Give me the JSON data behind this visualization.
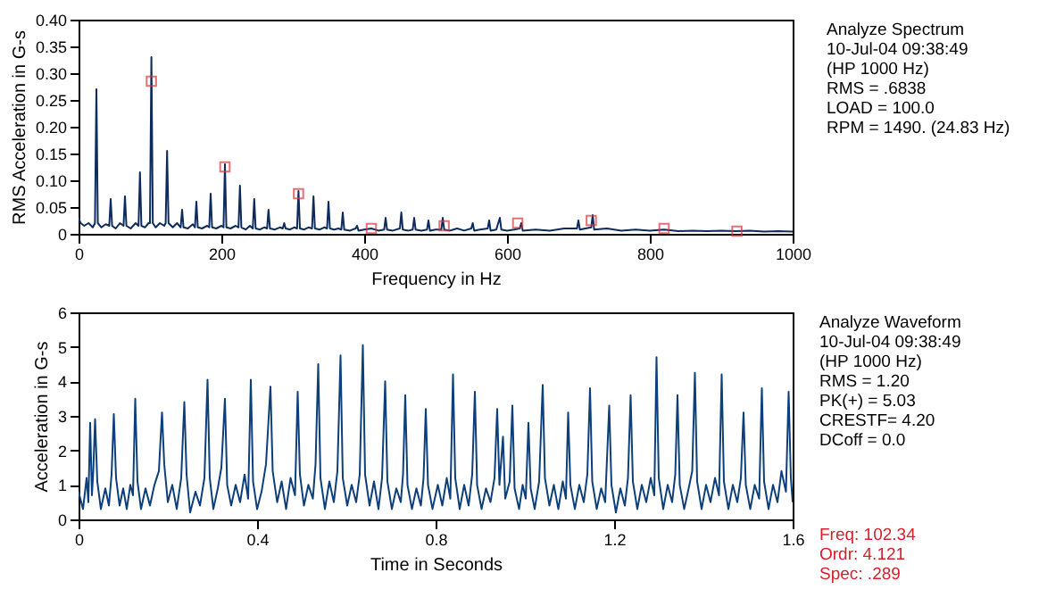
{
  "chart_data": [
    {
      "type": "line",
      "xlabel": "Frequency in Hz",
      "ylabel": "RMS Acceleration in G-s",
      "xlim": [
        0,
        1000
      ],
      "xticks": [
        0,
        200,
        400,
        600,
        800,
        1000
      ],
      "ylim": [
        0,
        0.4
      ],
      "yticks": [
        0,
        0.05,
        {
          "value": 0.1,
          "label": "0.10"
        },
        0.15,
        {
          "value": 0.2,
          "label": "0.20"
        },
        0.25,
        {
          "value": 0.3,
          "label": "0.30"
        },
        0.35,
        {
          "value": 0.4,
          "label": "0.40"
        }
      ],
      "grid": false,
      "series": [
        {
          "color": "#0d2b5c",
          "x": [
            0,
            3,
            8,
            14,
            20,
            23,
            25,
            27,
            32,
            38,
            43,
            45,
            47,
            52,
            58,
            63,
            65,
            67,
            73,
            80,
            84,
            86,
            88,
            93,
            98,
            100,
            102,
            104,
            108,
            114,
            120,
            122,
            124,
            126,
            132,
            138,
            143,
            145,
            147,
            153,
            160,
            163,
            165,
            167,
            173,
            180,
            183,
            185,
            187,
            193,
            200,
            203,
            205,
            207,
            213,
            220,
            224,
            226,
            228,
            234,
            240,
            244,
            246,
            248,
            254,
            260,
            264,
            266,
            268,
            275,
            282,
            286,
            288,
            290,
            296,
            302,
            306,
            308,
            310,
            316,
            322,
            327,
            329,
            331,
            338,
            344,
            348,
            350,
            352,
            358,
            364,
            368,
            370,
            372,
            380,
            388,
            390,
            392,
            400,
            410,
            420,
            428,
            430,
            432,
            440,
            450,
            452,
            454,
            462,
            468,
            470,
            472,
            480,
            488,
            490,
            492,
            500,
            508,
            510,
            512,
            520,
            530,
            540,
            550,
            552,
            554,
            562,
            573,
            575,
            577,
            585,
            590,
            592,
            600,
            610,
            618,
            620,
            622,
            640,
            660,
            680,
            698,
            700,
            702,
            710,
            718,
            720,
            722,
            740,
            760,
            780,
            800,
            820,
            840,
            860,
            880,
            900,
            920,
            940,
            960,
            980,
            1000
          ],
          "values": [
            0.03,
            0.02,
            0.015,
            0.02,
            0.012,
            0.02,
            0.27,
            0.02,
            0.012,
            0.018,
            0.015,
            0.065,
            0.015,
            0.01,
            0.02,
            0.015,
            0.07,
            0.015,
            0.01,
            0.02,
            0.015,
            0.115,
            0.015,
            0.012,
            0.02,
            0.02,
            0.33,
            0.02,
            0.012,
            0.02,
            0.015,
            0.02,
            0.155,
            0.02,
            0.012,
            0.02,
            0.012,
            0.045,
            0.012,
            0.01,
            0.018,
            0.012,
            0.06,
            0.012,
            0.01,
            0.015,
            0.012,
            0.075,
            0.012,
            0.01,
            0.015,
            0.012,
            0.13,
            0.012,
            0.01,
            0.015,
            0.012,
            0.09,
            0.012,
            0.008,
            0.015,
            0.01,
            0.065,
            0.01,
            0.008,
            0.012,
            0.01,
            0.045,
            0.01,
            0.008,
            0.012,
            0.01,
            0.02,
            0.01,
            0.008,
            0.012,
            0.01,
            0.08,
            0.01,
            0.008,
            0.012,
            0.01,
            0.07,
            0.01,
            0.008,
            0.012,
            0.01,
            0.06,
            0.01,
            0.008,
            0.01,
            0.008,
            0.04,
            0.008,
            0.006,
            0.01,
            0.015,
            0.006,
            0.008,
            0.01,
            0.006,
            0.008,
            0.03,
            0.008,
            0.006,
            0.01,
            0.04,
            0.008,
            0.006,
            0.008,
            0.03,
            0.008,
            0.006,
            0.008,
            0.025,
            0.006,
            0.008,
            0.008,
            0.03,
            0.008,
            0.006,
            0.01,
            0.006,
            0.01,
            0.02,
            0.006,
            0.008,
            0.01,
            0.025,
            0.006,
            0.008,
            0.03,
            0.008,
            0.006,
            0.008,
            0.01,
            0.02,
            0.006,
            0.008,
            0.006,
            0.01,
            0.01,
            0.025,
            0.008,
            0.01,
            0.012,
            0.035,
            0.008,
            0.01,
            0.006,
            0.008,
            0.006,
            0.008,
            0.005,
            0.006,
            0.005,
            0.006,
            0.005,
            0.006,
            0.004,
            0.005,
            0.004
          ]
        },
        {
          "type": "scatter",
          "marker": "square",
          "color": "#d9363e",
          "x": [
            102,
            205,
            308,
            410,
            512,
            615,
            718,
            820,
            922
          ],
          "values": [
            0.285,
            0.125,
            0.075,
            0.01,
            0.015,
            0.02,
            0.025,
            0.01,
            0.005
          ]
        }
      ],
      "annotations": [
        "Analyze Spectrum",
        "10-Jul-04  09:38:49",
        "(HP 1000 Hz)",
        "RMS =  .6838",
        "LOAD = 100.0",
        "RPM = 1490. (24.83 Hz)"
      ]
    },
    {
      "type": "line",
      "xlabel": "Time in Seconds",
      "ylabel": "Acceleration in G-s",
      "xlim": [
        0,
        1.6
      ],
      "xticks": [
        0,
        0.4,
        0.8,
        1.2,
        1.6
      ],
      "ylim": [
        0,
        6
      ],
      "yticks": [
        0,
        1,
        2,
        3,
        4,
        5,
        6
      ],
      "grid": false,
      "series": [
        {
          "color": "#0d3f7a",
          "x": [
            0,
            0.01,
            0.018,
            0.022,
            0.026,
            0.03,
            0.033,
            0.037,
            0.042,
            0.05,
            0.06,
            0.068,
            0.074,
            0.079,
            0.084,
            0.092,
            0.1,
            0.108,
            0.116,
            0.122,
            0.127,
            0.132,
            0.14,
            0.15,
            0.16,
            0.17,
            0.18,
            0.187,
            0.192,
            0.2,
            0.21,
            0.22,
            0.23,
            0.237,
            0.242,
            0.25,
            0.262,
            0.272,
            0.282,
            0.289,
            0.294,
            0.302,
            0.312,
            0.32,
            0.328,
            0.333,
            0.342,
            0.352,
            0.362,
            0.372,
            0.38,
            0.386,
            0.391,
            0.4,
            0.41,
            0.42,
            0.43,
            0.435,
            0.445,
            0.455,
            0.465,
            0.475,
            0.485,
            0.491,
            0.496,
            0.505,
            0.515,
            0.525,
            0.531,
            0.537,
            0.542,
            0.552,
            0.562,
            0.572,
            0.58,
            0.587,
            0.592,
            0.602,
            0.612,
            0.622,
            0.63,
            0.637,
            0.642,
            0.652,
            0.662,
            0.672,
            0.68,
            0.687,
            0.692,
            0.702,
            0.712,
            0.722,
            0.727,
            0.732,
            0.737,
            0.747,
            0.757,
            0.767,
            0.773,
            0.778,
            0.783,
            0.793,
            0.805,
            0.815,
            0.825,
            0.833,
            0.839,
            0.844,
            0.854,
            0.864,
            0.874,
            0.882,
            0.888,
            0.893,
            0.903,
            0.913,
            0.923,
            0.932,
            0.938,
            0.943,
            0.951,
            0.956,
            0.966,
            0.972,
            0.977,
            0.987,
            0.995,
            1.002,
            1.008,
            1.013,
            1.022,
            1.032,
            1.04,
            1.045,
            1.055,
            1.065,
            1.075,
            1.085,
            1.092,
            1.097,
            1.102,
            1.112,
            1.122,
            1.132,
            1.14,
            1.146,
            1.151,
            1.161,
            1.171,
            1.18,
            1.189,
            1.194,
            1.204,
            1.214,
            1.224,
            1.231,
            1.237,
            1.242,
            1.252,
            1.262,
            1.272,
            1.282,
            1.29,
            1.295,
            1.3,
            1.31,
            1.32,
            1.33,
            1.337,
            1.342,
            1.347,
            1.357,
            1.367,
            1.375,
            1.381,
            1.386,
            1.396,
            1.406,
            1.416,
            1.426,
            1.435,
            1.441,
            1.446,
            1.456,
            1.466,
            1.476,
            1.484,
            1.49,
            1.495,
            1.505,
            1.515,
            1.525,
            1.531,
            1.536,
            1.546,
            1.556,
            1.566,
            1.575,
            1.585,
            1.591,
            1.596,
            1.6
          ],
          "values": [
            0.8,
            0.3,
            1.2,
            0.5,
            2.8,
            0.7,
            1.4,
            2.9,
            1.1,
            0.3,
            0.9,
            0.4,
            1.3,
            3.05,
            1.2,
            0.4,
            0.9,
            0.3,
            1.0,
            0.7,
            3.5,
            1.1,
            0.3,
            0.9,
            0.4,
            1.0,
            1.4,
            3.1,
            1.6,
            0.5,
            1.0,
            0.3,
            1.2,
            3.4,
            1.3,
            0.2,
            0.8,
            0.4,
            1.2,
            4.05,
            1.2,
            0.3,
            0.9,
            1.5,
            3.5,
            1.0,
            0.4,
            1.0,
            0.5,
            1.3,
            0.6,
            4.05,
            1.1,
            0.3,
            0.8,
            1.6,
            3.85,
            1.4,
            0.5,
            1.1,
            0.3,
            1.2,
            0.7,
            3.7,
            1.3,
            0.4,
            1.0,
            0.6,
            1.6,
            4.5,
            1.2,
            0.3,
            1.1,
            0.5,
            1.4,
            4.75,
            1.2,
            0.4,
            1.0,
            0.5,
            1.3,
            5.05,
            1.3,
            0.4,
            1.1,
            0.3,
            1.2,
            4.0,
            1.1,
            0.3,
            0.9,
            0.5,
            1.3,
            3.6,
            1.0,
            0.3,
            0.9,
            0.4,
            1.2,
            3.2,
            1.0,
            0.3,
            1.0,
            0.4,
            1.2,
            0.6,
            4.2,
            1.2,
            0.3,
            1.0,
            0.4,
            1.3,
            3.7,
            1.0,
            0.3,
            0.9,
            0.5,
            1.2,
            3.2,
            1.0,
            2.4,
            0.6,
            1.1,
            3.3,
            0.9,
            0.3,
            1.0,
            0.6,
            2.8,
            0.9,
            0.3,
            1.1,
            3.9,
            1.2,
            0.4,
            1.0,
            0.3,
            1.1,
            0.6,
            3.1,
            1.0,
            0.3,
            1.0,
            0.5,
            1.3,
            3.8,
            1.1,
            0.3,
            0.9,
            0.5,
            3.3,
            1.0,
            0.2,
            0.9,
            0.4,
            1.2,
            3.6,
            1.1,
            0.3,
            1.0,
            0.5,
            1.2,
            0.7,
            4.7,
            1.2,
            0.3,
            1.0,
            0.5,
            1.3,
            3.6,
            1.0,
            0.3,
            0.9,
            1.4,
            4.25,
            1.1,
            0.3,
            1.0,
            0.5,
            1.2,
            0.7,
            4.2,
            1.1,
            0.3,
            1.0,
            0.5,
            1.2,
            3.1,
            1.0,
            0.3,
            1.0,
            0.6,
            3.8,
            1.1,
            0.3,
            1.0,
            0.5,
            1.4,
            0.8,
            3.7,
            1.2,
            0.5
          ]
        }
      ],
      "annotations": [
        "Analyze Waveform",
        "10-Jul-04  09:38:49",
        "(HP 1000 Hz)",
        "RMS =  1.20",
        "PK(+) = 5.03",
        "CRESTF= 4.20",
        "DCoff = 0.0"
      ]
    },
    {
      "type": "other",
      "annotations": [
        "Freq:   102.34",
        "Ordr:   4.121",
        "Spec:   .289"
      ]
    }
  ]
}
